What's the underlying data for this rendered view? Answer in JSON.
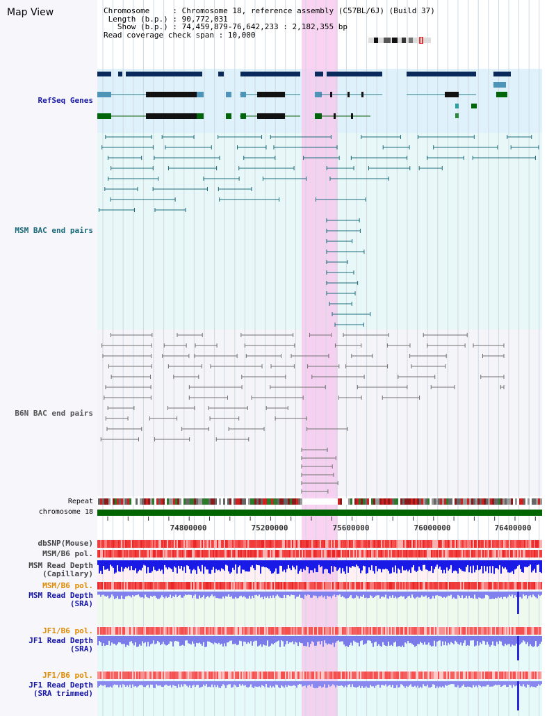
{
  "title": "Map View",
  "info": {
    "chromosome_line": "Chromosome     : Chromosome 18, reference assembly (C57BL/6J) (Build 37)",
    "length_line": " Length (b.p.) : 90,772,031",
    "show_line": "   Show (b.p.) : 74,459,879-76,642,233 : 2,182,355 bp",
    "coverage_line": "Read coverage check span : 10,000"
  },
  "tracks": {
    "refseq": "RefSeq Genes",
    "msm_bac": "MSM BAC end pairs",
    "b6n_bac": "B6N BAC end pairs",
    "repeat": "Repeat",
    "chromosome": "chromosome 18",
    "dbsnp": "dbSNP(Mouse)",
    "msm_b6_pol_1": "MSM/B6 pol.",
    "msm_depth_cap": "MSM Read Depth\n(Capillary)",
    "msm_b6_pol_2": "MSM/B6 pol.",
    "msm_depth_sra": "MSM Read Depth\n(SRA)",
    "jf1_b6_pol_1": "JF1/B6 pol.",
    "jf1_depth_sra": "JF1 Read Depth\n(SRA)",
    "jf1_b6_pol_2": "JF1/B6 pol.",
    "jf1_depth_trim": "JF1 Read Depth\n(SRA trimmed)"
  },
  "axis": {
    "ticks": [
      "74800000",
      "75200000",
      "75600000",
      "76000000",
      "76400000"
    ]
  },
  "colors": {
    "refseq_label": "#1a1aa6",
    "msm_bac_label": "#1a6a7a",
    "b6n_bac_label": "#555555",
    "pol_label": "#e08a00",
    "depth_label": "#1414a8",
    "highlight": "#f7c4ec",
    "chromosome": "#006400"
  }
}
